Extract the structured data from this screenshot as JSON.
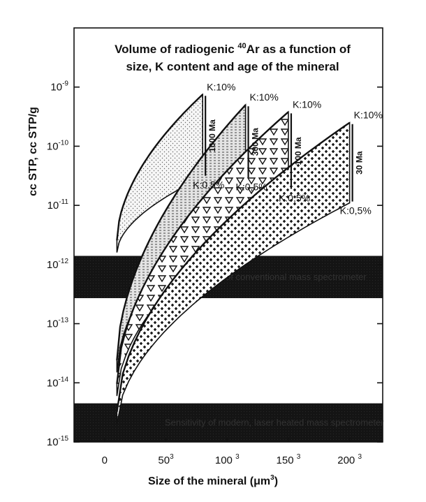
{
  "chart_data": {
    "type": "area",
    "title_lines": [
      "Volume of radiogenic ",
      "size, K content and age of the mineral"
    ],
    "title_superscript": "40",
    "title_element": "Ar as a function of",
    "ylabel": "cc STP, cc STP/g",
    "xlabel_main": "Size of the mineral (",
    "xlabel_unit": "μm",
    "xlabel_unit_exp": "3",
    "xlabel_close": ")",
    "y_scale": "log",
    "ylim": [
      1e-15,
      1e-08
    ],
    "xlim": [
      -25,
      227
    ],
    "y_ticks": [
      {
        "base": "10",
        "exp": "-9"
      },
      {
        "base": "10",
        "exp": "-10"
      },
      {
        "base": "10",
        "exp": "-11"
      },
      {
        "base": "10",
        "exp": "-12"
      },
      {
        "base": "10",
        "exp": "-13"
      },
      {
        "base": "10",
        "exp": "-14"
      },
      {
        "base": "10",
        "exp": "-15"
      }
    ],
    "x_ticks": [
      {
        "base": "0",
        "exp": ""
      },
      {
        "base": "50",
        "exp": "3"
      },
      {
        "base": "100 ",
        "exp": "3"
      },
      {
        "base": "150 ",
        "exp": "3"
      },
      {
        "base": "200 ",
        "exp": "3"
      }
    ],
    "bands": [
      {
        "ylim": [
          2.7e-13,
          1.4e-12
        ],
        "color": "#151515",
        "text": "Sensitivity of conventional mass spectrometer"
      },
      {
        "ylim": [
          1e-15,
          4.5e-15
        ],
        "color": "#151515",
        "text": "Sensitivity of modern, laser heated mass spectrometer"
      }
    ],
    "series": [
      {
        "age_label": "1000 Ma",
        "k_high_label": "K:10%",
        "k_low_label": "K:0,5%",
        "x_end": 80,
        "y_top": 7.5e-10,
        "y_bottom": 3e-11,
        "pattern": "dots-light",
        "hatch": "#555555"
      },
      {
        "age_label": "300 Ma",
        "k_high_label": "K:10%",
        "k_low_label": "K:0,5%",
        "x_end": 115,
        "y_top": 5e-10,
        "y_bottom": 2.8e-11,
        "pattern": "dashes",
        "hatch": "#444444"
      },
      {
        "age_label": "100 Ma",
        "k_high_label": "K:10%",
        "k_low_label": "K:0,5%",
        "x_end": 150,
        "y_top": 3.8e-10,
        "y_bottom": 1.8e-11,
        "pattern": "triangles",
        "hatch": "#222222"
      },
      {
        "age_label": "30 Ma",
        "k_high_label": "K:10%",
        "k_low_label": "K:0,5%",
        "x_end": 200,
        "y_top": 2.5e-10,
        "y_bottom": 1.1e-11,
        "pattern": "crosses",
        "hatch": "#111111"
      }
    ],
    "curve_start_x": 10,
    "curve_start_y": [
      1.6e-12,
      1.5e-14,
      6e-15,
      2e-15
    ],
    "grid": false,
    "legend": "none"
  }
}
